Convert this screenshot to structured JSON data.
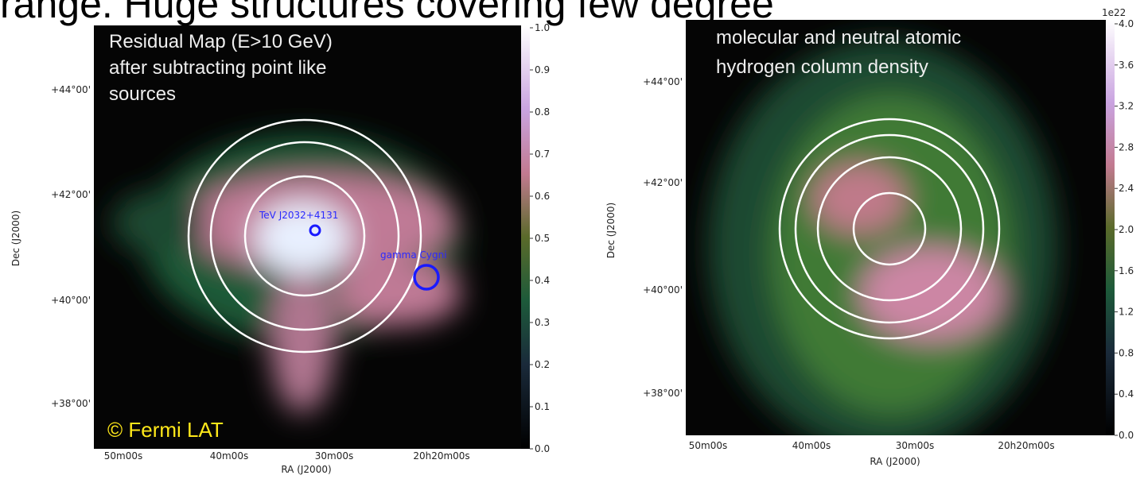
{
  "header": {
    "text": "range. Huge structures covering few degree"
  },
  "panels": [
    {
      "title_lines": [
        "Residual Map (E>10 GeV)",
        "after subtracting point like",
        "sources"
      ],
      "credit": "© Fermi LAT",
      "annotations": [
        "TeV J2032+4131",
        "gamma Cygni"
      ],
      "yticks": [
        "+44°00'",
        "+42°00'",
        "+40°00'",
        "+38°00'"
      ],
      "xticks": [
        "50m00s",
        "40m00s",
        "30m00s",
        "20h20m00s"
      ],
      "xlabel": "RA (J2000)",
      "ylabel": "Dec (J2000)",
      "colorbar_ticks": [
        "1.0",
        "0.9",
        "0.8",
        "0.7",
        "0.6",
        "0.5",
        "0.4",
        "0.3",
        "0.2",
        "0.1",
        "0.0"
      ]
    },
    {
      "title_lines": [
        "molecular and neutral atomic",
        "hydrogen column density"
      ],
      "colorbar_offset": "1e22",
      "yticks": [
        "+44°00'",
        "+42°00'",
        "+40°00'",
        "+38°00'"
      ],
      "xticks": [
        "50m00s",
        "40m00s",
        "30m00s",
        "20h20m00s"
      ],
      "xlabel": "RA (J2000)",
      "ylabel": "Dec (J2000)",
      "colorbar_ticks": [
        "4.0",
        "3.6",
        "3.2",
        "2.8",
        "2.4",
        "2.0",
        "1.6",
        "1.2",
        "0.8",
        "0.4",
        "0.0"
      ]
    }
  ]
}
